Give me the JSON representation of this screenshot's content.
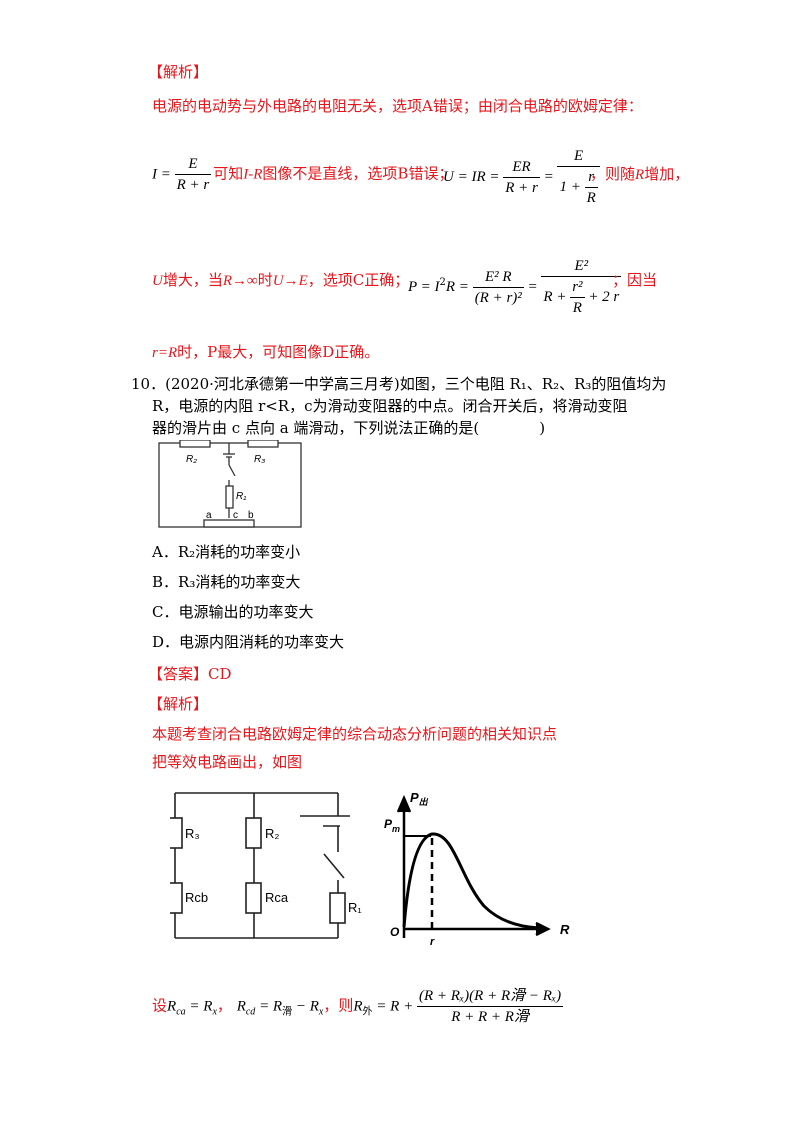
{
  "section1": {
    "header": "【解析】",
    "line1": "电源的电动势与外电路的电阻无关，选项A错误；由闭合电路的欧姆定律：",
    "eq1_lhs": "I = ",
    "eq1_num": "E",
    "eq1_den": "R + r",
    "eq1_text_a": "可知",
    "eq1_ir": "I-R",
    "eq1_text_b": "图像不是直线，选项B错误；",
    "eq2_lhs": "U = IR = ",
    "eq2_num": "ER",
    "eq2_den": "R + r",
    "eq2_eq": " = ",
    "eq2_num2": "E",
    "eq2_den2_a": "1 + ",
    "eq2_den2_num": "r",
    "eq2_den2_den": "R",
    "eq2_tail_a": "，则随",
    "eq2_tail_r": "R",
    "eq2_tail_b": "增加，",
    "line3_a": "U",
    "line3_b": "增大，当",
    "line3_c": "R→∞",
    "line3_d": "时",
    "line3_e": "U→E",
    "line3_f": "，选项C正确；",
    "eq3_lhs": "P = I",
    "eq3_sup": "2",
    "eq3_r": "R = ",
    "eq3_num": "E² R",
    "eq3_den": "(R + r)²",
    "eq3_eq": " = ",
    "eq3_num2": "E²",
    "eq3_den2_a": "R + ",
    "eq3_den2_num": "r²",
    "eq3_den2_den": "R",
    "eq3_den2_b": " + 2 r",
    "eq3_tail": "；因当",
    "line4_a": "r=R",
    "line4_b": "时，P最大，可知图像D正确。"
  },
  "question": {
    "line1": "10．(2020·河北承德第一中学高三月考)如图，三个电阻 R₁、R₂、R₃的阻值均为",
    "line2": "R，电源的内阻 r<R，c为滑动变阻器的中点。闭合开关后，将滑动变阻",
    "line3": "器的滑片由 c 点向 a 端滑动，下列说法正确的是(　　　　)",
    "options": [
      "A．R₂消耗的功率变小",
      "B．R₃消耗的功率变大",
      "C．电源输出的功率变大",
      "D．电源内阻消耗的功率变大"
    ],
    "answer": "【答案】CD",
    "analysis_header": "【解析】",
    "analysis_line1": "本题考查闭合电路欧姆定律的综合动态分析问题的相关知识点",
    "analysis_line2": "把等效电路画出，如图"
  },
  "circuit1": {
    "r2": "R₂",
    "r3": "R₃",
    "r1": "R₁",
    "a": "a",
    "c": "c",
    "b": "b"
  },
  "circuit2": {
    "r3": "R₃",
    "r2": "R₂",
    "rcb": "Rcb",
    "rca": "Rca",
    "r1": "R₁"
  },
  "graph": {
    "y_axis": "P",
    "y_sub": "出",
    "pm": "P",
    "pm_sub": "m",
    "origin": "O",
    "r_tick": "r",
    "x_axis": "R"
  },
  "final": {
    "she": "设",
    "eq_a": "R",
    "eq_a_sub": "ca",
    "eq_a_rhs": " = R",
    "eq_a_rhs_sub": "x",
    "sep1": "，",
    "eq_b": "R",
    "eq_b_sub": "cd",
    "eq_b_rhs": " = R",
    "eq_b_rhs_sub1": "滑",
    "eq_b_rhs2": " − R",
    "eq_b_rhs_sub2": "x",
    "sep2": "，则",
    "eq_c": "R",
    "eq_c_sub": "外",
    "eq_c_rhs": " = R + ",
    "num": "(R + Rₓ)(R + R滑 − Rₓ)",
    "den": "R + R + R滑"
  }
}
